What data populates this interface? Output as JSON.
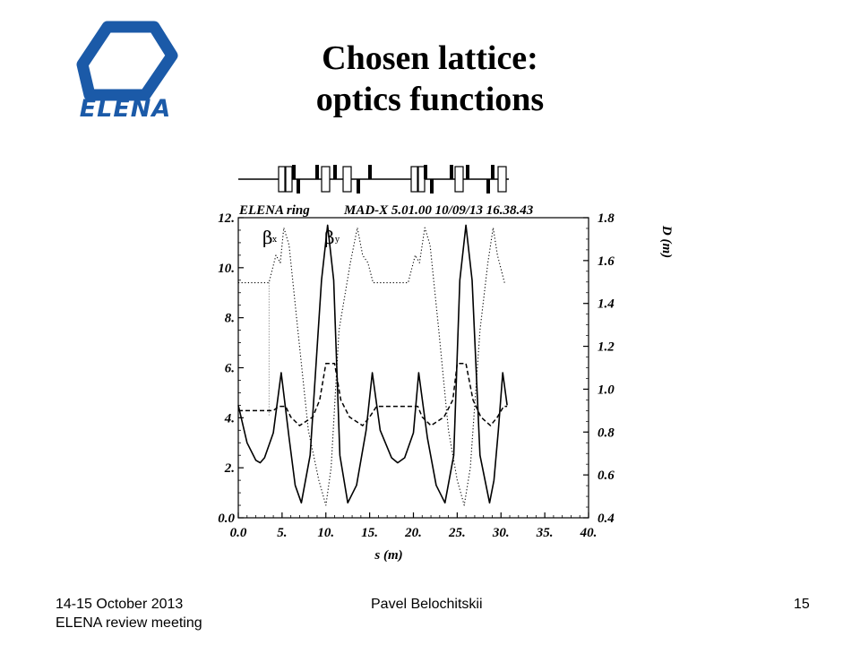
{
  "slide": {
    "title_line1": "Chosen lattice:",
    "title_line2": "optics functions",
    "logo_text": "ELENA",
    "footer_left_line1": "14-15 October 2013",
    "footer_left_line2": "ELENA  review meeting",
    "footer_center": "Pavel Belochitskii",
    "footer_right": "15"
  },
  "colors": {
    "logo_blue": "#1b5aa8",
    "plot_ink": "#000000"
  },
  "chart_data": {
    "type": "line",
    "header_left": "ELENA ring",
    "header_right": "MAD-X 5.01.00   10/09/13 16.38.43",
    "xlabel": "s (m)",
    "ylabel_right": "D (m)",
    "xlim": [
      0,
      40
    ],
    "ylim_left": [
      0,
      12
    ],
    "ylim_right": [
      0.4,
      1.8
    ],
    "x_ticks": [
      "0.0",
      "5.",
      "10.",
      "15.",
      "20.",
      "25.",
      "30.",
      "35.",
      "40."
    ],
    "y_left_ticks": [
      "0.0",
      "2.",
      "4.",
      "6.",
      "8.",
      "10.",
      "12."
    ],
    "y_right_ticks": [
      "0.4",
      "0.6",
      "0.8",
      "1.0",
      "1.2",
      "1.4",
      "1.6",
      "1.8"
    ],
    "grid": false,
    "series": [
      {
        "name": "βx",
        "axis": "left",
        "style": "solid",
        "x": [
          0,
          1,
          2,
          2.5,
          3,
          4,
          4.9,
          5.8,
          6.5,
          7.2,
          8.2,
          9.5,
          10.2,
          10.9,
          11.6,
          12.5,
          13.5,
          14.6,
          15.3,
          16.2,
          17.5,
          18.2,
          19,
          20,
          20.6,
          21.6,
          22.6,
          23.6,
          24.6,
          25.3,
          26,
          26.7,
          27.6,
          28.7,
          29.2,
          29.7,
          30.2,
          30.7
        ],
        "y": [
          4.5,
          3.0,
          2.3,
          2.2,
          2.4,
          3.4,
          5.8,
          3.2,
          1.3,
          0.6,
          2.5,
          9.5,
          11.7,
          9.5,
          2.5,
          0.6,
          1.3,
          3.5,
          5.8,
          3.5,
          2.4,
          2.2,
          2.4,
          3.4,
          5.8,
          3.2,
          1.3,
          0.6,
          2.5,
          9.5,
          11.7,
          9.5,
          2.5,
          0.6,
          1.5,
          3.5,
          5.8,
          4.5
        ]
      },
      {
        "name": "βy",
        "axis": "left",
        "style": "dotted",
        "x": [
          0,
          3.5,
          4.3,
          4.8,
          5.2,
          5.8,
          6.8,
          8,
          9.2,
          10,
          10.6,
          11.5,
          12.8,
          13.6,
          14.2,
          14.8,
          15.4,
          19.4,
          20.2,
          20.7,
          21.3,
          21.9,
          22.9,
          24,
          25,
          25.8,
          26.5,
          27.6,
          28.5,
          29.1,
          29.6,
          30.4
        ],
        "y": [
          9.4,
          9.4,
          10.5,
          10.2,
          11.6,
          10.9,
          7.5,
          3.5,
          1.5,
          0.5,
          2.0,
          7.5,
          10.2,
          11.6,
          10.5,
          10.2,
          9.4,
          9.4,
          10.5,
          10.2,
          11.6,
          10.9,
          7.5,
          3.5,
          1.5,
          0.5,
          2.0,
          7.5,
          10.2,
          11.6,
          10.5,
          9.4
        ]
      },
      {
        "name": "Dx",
        "axis": "right",
        "style": "dashed",
        "x": [
          0,
          4,
          4.6,
          5.4,
          6,
          7,
          8.5,
          9.3,
          10,
          11,
          11.7,
          12.7,
          14.2,
          15,
          15.8,
          19.5,
          20.5,
          21,
          22,
          23.5,
          24.5,
          25,
          26,
          26.8,
          27.7,
          28.8,
          29.6,
          30.3,
          30.7
        ],
        "y": [
          0.9,
          0.9,
          0.92,
          0.92,
          0.87,
          0.83,
          0.87,
          0.95,
          1.12,
          1.12,
          0.95,
          0.87,
          0.83,
          0.87,
          0.92,
          0.92,
          0.92,
          0.87,
          0.83,
          0.87,
          0.95,
          1.12,
          1.12,
          0.95,
          0.87,
          0.83,
          0.87,
          0.92,
          0.92
        ]
      }
    ],
    "legend_labels": [
      "β",
      "x",
      "β",
      "y"
    ]
  }
}
